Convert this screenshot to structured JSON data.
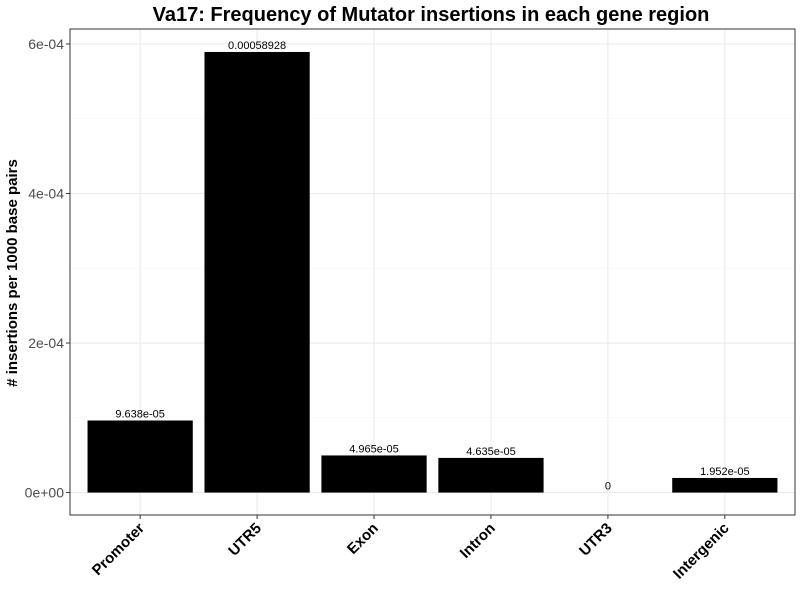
{
  "chart_data": {
    "type": "bar",
    "title": "Va17: Frequency of Mutator insertions in each gene region",
    "xlabel": "",
    "ylabel": "# insertions per 1000 base pairs",
    "categories": [
      "Promoter",
      "UTR5",
      "Exon",
      "Intron",
      "UTR3",
      "Intergenic"
    ],
    "values": [
      9.638e-05,
      0.00058928,
      4.965e-05,
      4.635e-05,
      0,
      1.952e-05
    ],
    "value_labels": [
      "9.638e-05",
      "0.00058928",
      "4.965e-05",
      "4.635e-05",
      "0",
      "1.952e-05"
    ],
    "yticks": [
      0,
      0.0002,
      0.0004,
      0.0006
    ],
    "ytick_labels": [
      "0e+00",
      "2e-04",
      "4e-04",
      "6e-04"
    ],
    "ylim": [
      -3e-05,
      0.00062
    ],
    "grid": true,
    "bar_color": "#000000",
    "panel_border_color": "#333333",
    "grid_major_color": "#ebebeb",
    "grid_minor_color": "#f5f5f5"
  }
}
